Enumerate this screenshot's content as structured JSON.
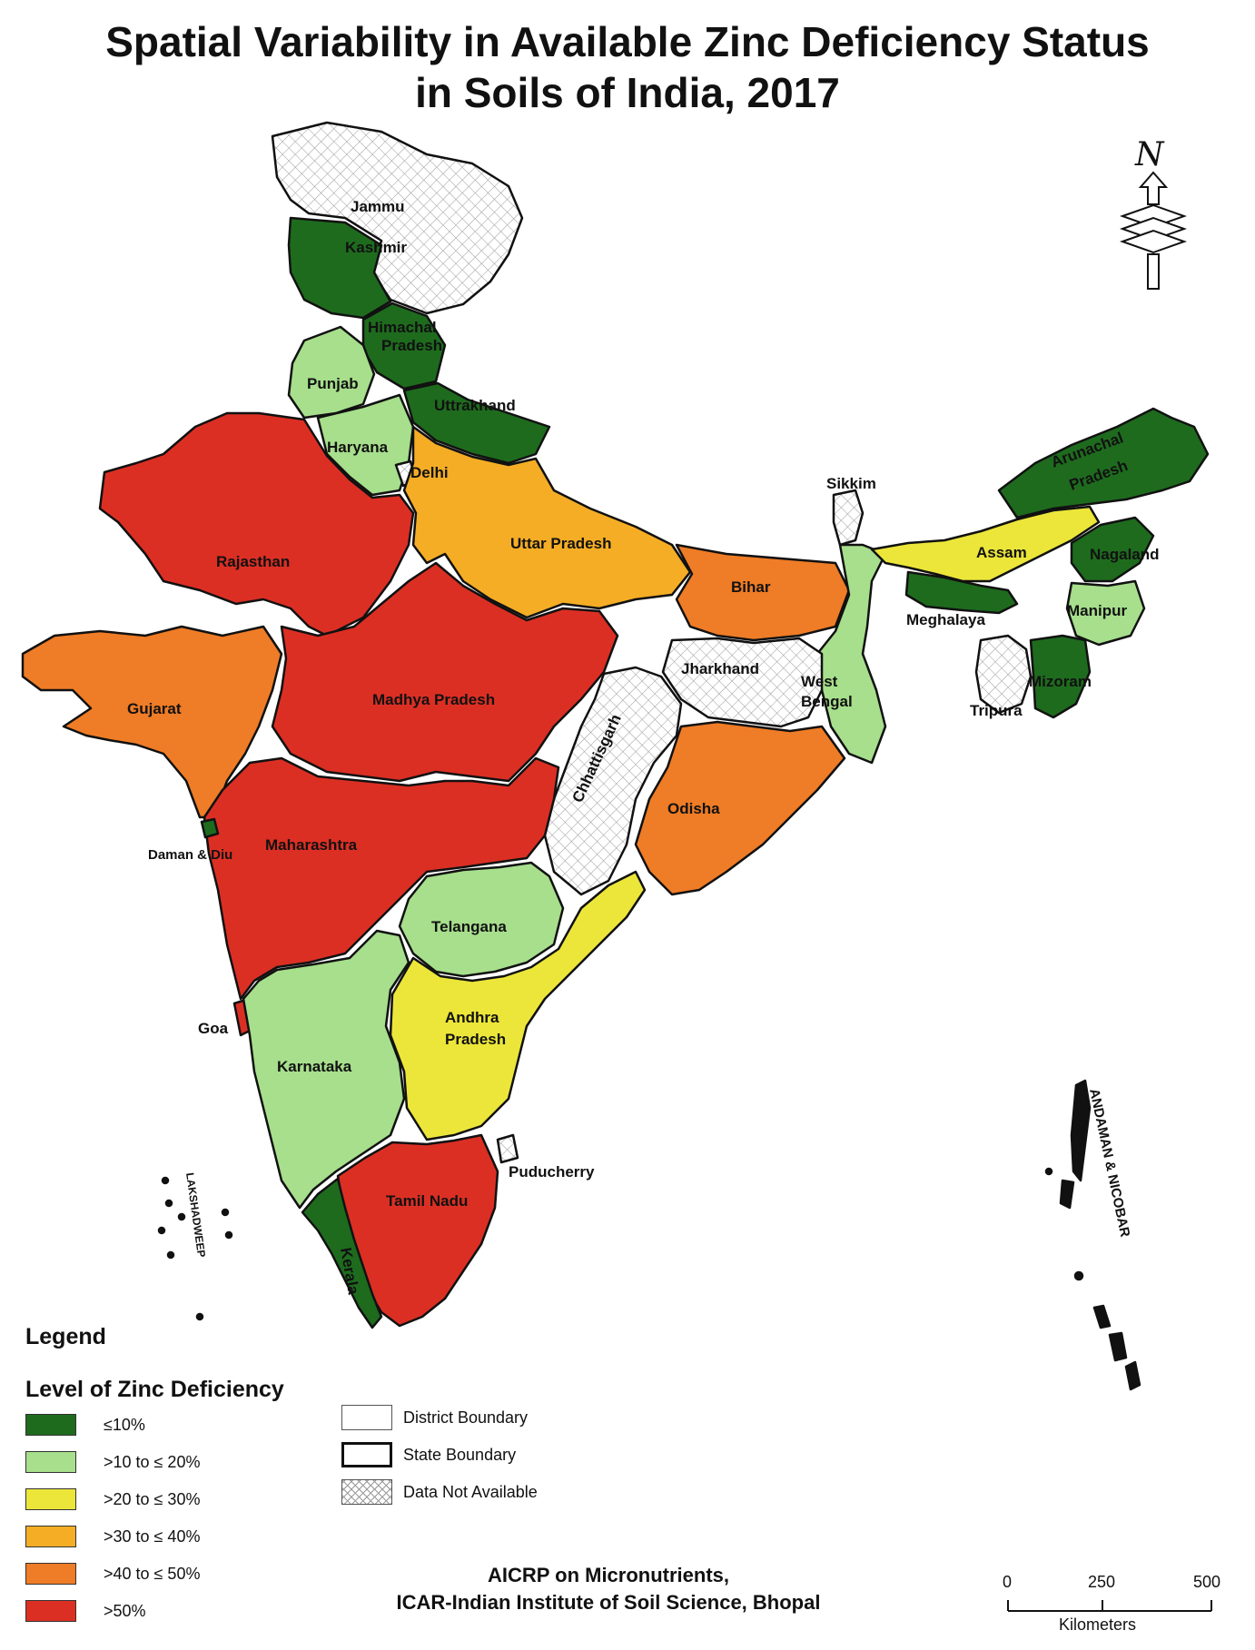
{
  "title_line1": "Spatial Variability in Available Zinc Deficiency Status",
  "title_line2": "in Soils of India, 2017",
  "colors": {
    "le10": "#1e6b1e",
    "gt10_le20": "#a7df8c",
    "gt20_le30": "#ece63a",
    "gt30_le40": "#f5ad26",
    "gt40_le50": "#ef7c26",
    "gt50": "#dc2f24",
    "na": "#ffffff"
  },
  "regions": [
    {
      "name": "Jammu",
      "level": "na"
    },
    {
      "name": "Kashmir",
      "level": "le10"
    },
    {
      "name": "Himachal Pradesh",
      "level": "le10"
    },
    {
      "name": "Punjab",
      "level": "gt10_le20"
    },
    {
      "name": "Uttrakhand",
      "level": "le10"
    },
    {
      "name": "Haryana",
      "level": "gt10_le20"
    },
    {
      "name": "Delhi",
      "level": "na"
    },
    {
      "name": "Rajasthan",
      "level": "gt50"
    },
    {
      "name": "Uttar Pradesh",
      "level": "gt30_le40"
    },
    {
      "name": "Bihar",
      "level": "gt40_le50"
    },
    {
      "name": "Sikkim",
      "level": "na"
    },
    {
      "name": "Arunachal Pradesh",
      "level": "le10"
    },
    {
      "name": "Assam",
      "level": "gt20_le30"
    },
    {
      "name": "Nagaland",
      "level": "le10"
    },
    {
      "name": "Meghalaya",
      "level": "le10"
    },
    {
      "name": "Manipur",
      "level": "gt10_le20"
    },
    {
      "name": "Mizoram",
      "level": "le10"
    },
    {
      "name": "Tripura",
      "level": "na"
    },
    {
      "name": "Gujarat",
      "level": "gt40_le50"
    },
    {
      "name": "Madhya Pradesh",
      "level": "gt50"
    },
    {
      "name": "Jharkhand",
      "level": "na"
    },
    {
      "name": "West Bengal",
      "level": "gt10_le20"
    },
    {
      "name": "Chhattisgarh",
      "level": "na"
    },
    {
      "name": "Odisha",
      "level": "gt40_le50"
    },
    {
      "name": "Maharashtra",
      "level": "gt50"
    },
    {
      "name": "Daman & Diu",
      "level": "le10"
    },
    {
      "name": "Telangana",
      "level": "gt10_le20"
    },
    {
      "name": "Goa",
      "level": "gt50"
    },
    {
      "name": "Karnataka",
      "level": "gt10_le20"
    },
    {
      "name": "Andhra Pradesh",
      "level": "gt20_le30"
    },
    {
      "name": "Puducherry",
      "level": "na"
    },
    {
      "name": "Tamil Nadu",
      "level": "gt50"
    },
    {
      "name": "Kerala",
      "level": "le10"
    },
    {
      "name": "LAKSHADWEEP",
      "level": "na"
    },
    {
      "name": "ANDAMAN & NICOBAR",
      "level": "na"
    }
  ],
  "labels": {
    "jammu": "Jammu",
    "kashmir": "Kashmir",
    "himachal1": "Himachal",
    "himachal2": "Pradesh",
    "punjab": "Punjab",
    "uttrakhand": "Uttrakhand",
    "haryana": "Haryana",
    "delhi": "Delhi",
    "rajasthan": "Rajasthan",
    "up": "Uttar Pradesh",
    "bihar": "Bihar",
    "sikkim": "Sikkim",
    "arunachal1": "Arunachal",
    "arunachal2": "Pradesh",
    "assam": "Assam",
    "nagaland": "Nagaland",
    "meghalaya": "Meghalaya",
    "manipur": "Manipur",
    "mizoram": "Mizoram",
    "tripura": "Tripura",
    "gujarat": "Gujarat",
    "mp": "Madhya Pradesh",
    "jharkhand": "Jharkhand",
    "westbengal1": "West",
    "westbengal2": "Bengal",
    "chhattisgarh": "Chhattisgarh",
    "odisha": "Odisha",
    "maharashtra": "Maharashtra",
    "damandiu": "Daman & Diu",
    "telangana": "Telangana",
    "goa": "Goa",
    "karnataka": "Karnataka",
    "andhra1": "Andhra",
    "andhra2": "Pradesh",
    "puducherry": "Puducherry",
    "tamilnadu": "Tamil Nadu",
    "kerala": "Kerala",
    "lakshadweep": "LAKSHADWEEP",
    "andaman": "ANDAMAN & NICOBAR"
  },
  "north_label": "N",
  "legend": {
    "title": "Legend",
    "subtitle": "Level of Zinc Deficiency",
    "classes": [
      {
        "label": "≤10%",
        "key": "le10"
      },
      {
        "label": ">10 to ≤ 20%",
        "key": "gt10_le20"
      },
      {
        "label": ">20 to ≤ 30%",
        "key": "gt20_le30"
      },
      {
        "label": ">30 to ≤ 40%",
        "key": "gt30_le40"
      },
      {
        "label": ">40 to ≤ 50%",
        "key": "gt40_le50"
      },
      {
        "label": ">50%",
        "key": "gt50"
      }
    ],
    "boundaries": {
      "district": "District Boundary",
      "state": "State Boundary",
      "na": "Data Not Available"
    }
  },
  "credit_line1": "AICRP on Micronutrients,",
  "credit_line2": "ICAR-Indian Institute of Soil Science, Bhopal",
  "scale": {
    "tick0": "0",
    "tick1": "250",
    "tick2": "500",
    "unit": "Kilometers"
  }
}
